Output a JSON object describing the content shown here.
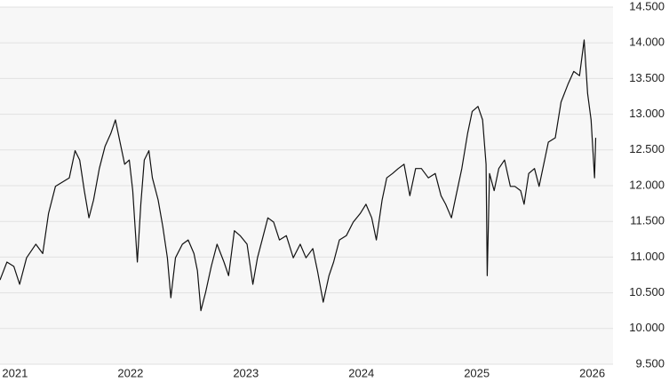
{
  "chart_data": {
    "type": "line",
    "x": [
      2020.87,
      2020.93,
      2020.99,
      2021.04,
      2021.1,
      2021.18,
      2021.24,
      2021.29,
      2021.35,
      2021.41,
      2021.47,
      2021.52,
      2021.56,
      2021.6,
      2021.64,
      2021.68,
      2021.73,
      2021.78,
      2021.83,
      2021.87,
      2021.91,
      2021.95,
      2021.99,
      2022.02,
      2022.06,
      2022.09,
      2022.12,
      2022.16,
      2022.19,
      2022.24,
      2022.28,
      2022.32,
      2022.35,
      2022.39,
      2022.45,
      2022.5,
      2022.55,
      2022.58,
      2022.61,
      2022.65,
      2022.7,
      2022.75,
      2022.81,
      2022.85,
      2022.9,
      2022.95,
      2023.01,
      2023.06,
      2023.1,
      2023.15,
      2023.19,
      2023.24,
      2023.29,
      2023.35,
      2023.41,
      2023.47,
      2023.52,
      2023.58,
      2023.62,
      2023.67,
      2023.72,
      2023.76,
      2023.81,
      2023.87,
      2023.93,
      2023.99,
      2024.04,
      2024.09,
      2024.13,
      2024.18,
      2024.22,
      2024.27,
      2024.32,
      2024.37,
      2024.42,
      2024.47,
      2024.52,
      2024.58,
      2024.64,
      2024.69,
      2024.73,
      2024.78,
      2024.82,
      2024.87,
      2024.92,
      2024.96,
      2025.01,
      2025.05,
      2025.08,
      2025.09,
      2025.11,
      2025.15,
      2025.19,
      2025.24,
      2025.29,
      2025.33,
      2025.38,
      2025.41,
      2025.45,
      2025.5,
      2025.54,
      2025.58,
      2025.62,
      2025.68,
      2025.73,
      2025.79,
      2025.84,
      2025.89,
      2025.93,
      2025.96,
      2025.99,
      2026.02,
      2026.03
    ],
    "series": [
      {
        "color": "#111111",
        "values": [
          10680,
          10930,
          10870,
          10620,
          10990,
          11180,
          11050,
          11610,
          11990,
          12050,
          12110,
          12490,
          12360,
          11930,
          11550,
          11800,
          12240,
          12550,
          12730,
          12920,
          12610,
          12300,
          12360,
          11930,
          10930,
          11740,
          12360,
          12490,
          12110,
          11800,
          11430,
          10990,
          10430,
          10990,
          11180,
          11240,
          11050,
          10810,
          10250,
          10500,
          10870,
          11180,
          10930,
          10740,
          11370,
          11300,
          11180,
          10620,
          10990,
          11300,
          11550,
          11490,
          11240,
          11300,
          10990,
          11180,
          10990,
          11120,
          10810,
          10370,
          10740,
          10930,
          11240,
          11300,
          11490,
          11610,
          11740,
          11550,
          11240,
          11800,
          12110,
          12170,
          12240,
          12300,
          11860,
          12240,
          12240,
          12110,
          12170,
          11860,
          11740,
          11550,
          11860,
          12240,
          12730,
          13040,
          13110,
          12920,
          12300,
          10740,
          12170,
          11930,
          12240,
          12360,
          11990,
          11990,
          11930,
          11740,
          12170,
          12240,
          11990,
          12300,
          12610,
          12670,
          13170,
          13420,
          13600,
          13540,
          14040,
          13290,
          12920,
          12110,
          12670
        ]
      }
    ],
    "xlim": [
      2020.87,
      2026.18
    ],
    "xticks": [
      2021,
      2022,
      2023,
      2024,
      2025,
      2026
    ],
    "ylim": [
      9500,
      14500
    ],
    "yticks": [
      {
        "value": 9500,
        "label": "9.500"
      },
      {
        "value": 10000,
        "label": "10.000"
      },
      {
        "value": 10500,
        "label": "10.500"
      },
      {
        "value": 11000,
        "label": "11.000"
      },
      {
        "value": 11500,
        "label": "11.500"
      },
      {
        "value": 12000,
        "label": "12.000"
      },
      {
        "value": 12500,
        "label": "12.500"
      },
      {
        "value": 13000,
        "label": "13.000"
      },
      {
        "value": 13500,
        "label": "13.500"
      },
      {
        "value": 14000,
        "label": "14.000"
      },
      {
        "value": 14500,
        "label": "14.500"
      }
    ],
    "grid": true
  }
}
